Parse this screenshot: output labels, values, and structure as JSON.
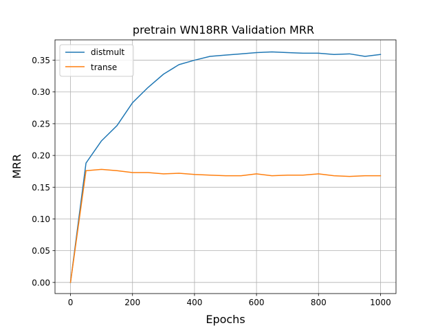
{
  "chart_data": {
    "type": "line",
    "title": "pretrain WN18RR Validation MRR",
    "xlabel": "Epochs",
    "ylabel": "MRR",
    "xlim": [
      -50,
      1050
    ],
    "ylim": [
      -0.0175,
      0.382
    ],
    "xticks": [
      0,
      200,
      400,
      600,
      800,
      1000
    ],
    "yticks": [
      0.0,
      0.05,
      0.1,
      0.15,
      0.2,
      0.25,
      0.3,
      0.35
    ],
    "xtick_labels": [
      "0",
      "200",
      "400",
      "600",
      "800",
      "1000"
    ],
    "ytick_labels": [
      "0.00",
      "0.05",
      "0.10",
      "0.15",
      "0.20",
      "0.25",
      "0.30",
      "0.35"
    ],
    "grid": true,
    "legend_position": "top-left",
    "x": [
      0,
      50,
      100,
      150,
      200,
      250,
      300,
      350,
      400,
      450,
      500,
      550,
      600,
      650,
      700,
      750,
      800,
      850,
      900,
      950,
      1000
    ],
    "series": [
      {
        "name": "distmult",
        "color": "#1f77b4",
        "values": [
          0.0,
          0.188,
          0.223,
          0.247,
          0.283,
          0.307,
          0.328,
          0.343,
          0.35,
          0.356,
          0.358,
          0.36,
          0.362,
          0.363,
          0.362,
          0.361,
          0.361,
          0.359,
          0.36,
          0.356,
          0.359
        ]
      },
      {
        "name": "transe",
        "color": "#ff7f0e",
        "values": [
          0.0,
          0.176,
          0.178,
          0.176,
          0.173,
          0.173,
          0.171,
          0.172,
          0.17,
          0.169,
          0.168,
          0.168,
          0.171,
          0.168,
          0.169,
          0.169,
          0.171,
          0.168,
          0.167,
          0.168,
          0.168
        ]
      }
    ]
  }
}
